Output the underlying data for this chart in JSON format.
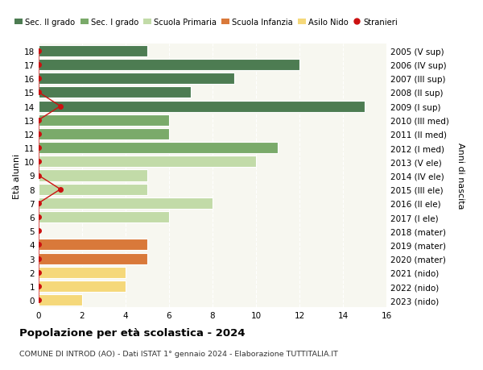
{
  "ages": [
    18,
    17,
    16,
    15,
    14,
    13,
    12,
    11,
    10,
    9,
    8,
    7,
    6,
    5,
    4,
    3,
    2,
    1,
    0
  ],
  "right_labels": [
    "2005 (V sup)",
    "2006 (IV sup)",
    "2007 (III sup)",
    "2008 (II sup)",
    "2009 (I sup)",
    "2010 (III med)",
    "2011 (II med)",
    "2012 (I med)",
    "2013 (V ele)",
    "2014 (IV ele)",
    "2015 (III ele)",
    "2016 (II ele)",
    "2017 (I ele)",
    "2018 (mater)",
    "2019 (mater)",
    "2020 (mater)",
    "2021 (nido)",
    "2022 (nido)",
    "2023 (nido)"
  ],
  "bar_values": [
    5,
    12,
    9,
    7,
    15,
    6,
    6,
    11,
    10,
    5,
    5,
    8,
    6,
    0,
    5,
    5,
    4,
    4,
    2
  ],
  "bar_colors": [
    "#4d7c52",
    "#4d7c52",
    "#4d7c52",
    "#4d7c52",
    "#4d7c52",
    "#7aaa6a",
    "#7aaa6a",
    "#7aaa6a",
    "#c2dba8",
    "#c2dba8",
    "#c2dba8",
    "#c2dba8",
    "#c2dba8",
    "#c2dba8",
    "#d9793a",
    "#d9793a",
    "#f5d87a",
    "#f5d87a",
    "#f5d87a"
  ],
  "stranieri_x": [
    0,
    0,
    0,
    0,
    1,
    0,
    0,
    0,
    0,
    0,
    1,
    0,
    0,
    0,
    0,
    0,
    0,
    0,
    0
  ],
  "colors": {
    "sec2": "#4d7c52",
    "sec1": "#7aaa6a",
    "primaria": "#c2dba8",
    "infanzia": "#d9793a",
    "nido": "#f5d87a",
    "stranieri": "#cc1111"
  },
  "title": "Popolazione per età scolastica - 2024",
  "subtitle": "COMUNE DI INTROD (AO) - Dati ISTAT 1° gennaio 2024 - Elaborazione TUTTITALIA.IT",
  "ylabel": "Età alunni",
  "right_ylabel": "Anni di nascita",
  "xlim": [
    0,
    16
  ],
  "xticks": [
    0,
    2,
    4,
    6,
    8,
    10,
    12,
    14,
    16
  ],
  "plot_bg": "#f7f7f0",
  "background_color": "#ffffff"
}
